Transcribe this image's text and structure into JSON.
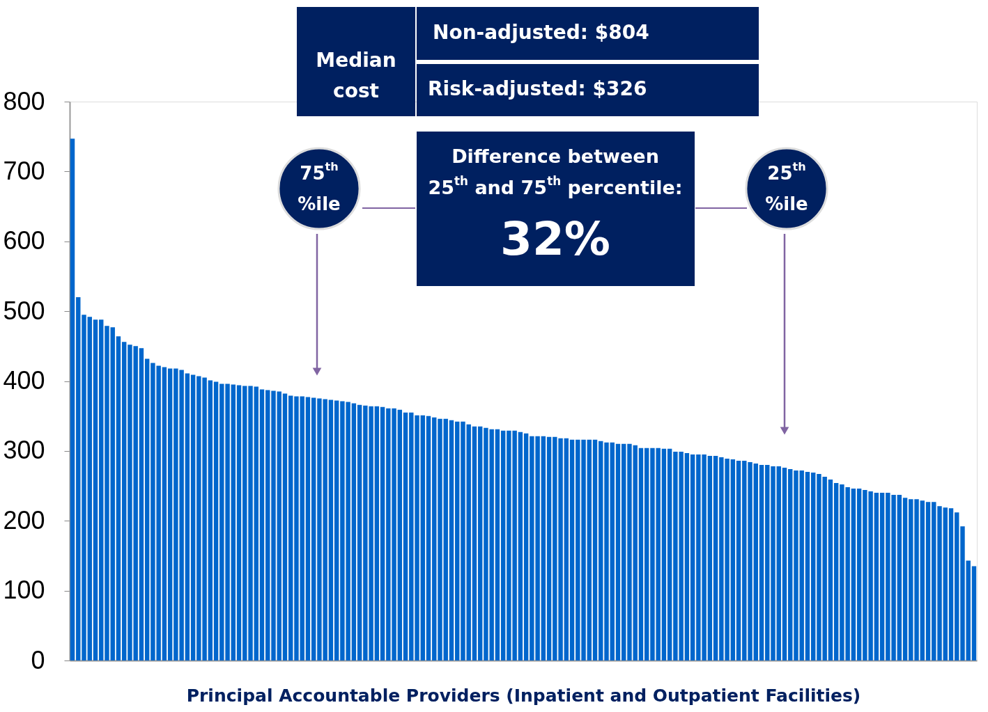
{
  "chart_data": {
    "type": "bar",
    "xlabel": "Principal Accountable Providers (Inpatient and Outpatient Facilities)",
    "categories": [
      null,
      null,
      null,
      null,
      null,
      null,
      null,
      null,
      null,
      null,
      null,
      null,
      null,
      null,
      null,
      null,
      null,
      null,
      null,
      null,
      null,
      null,
      null,
      null,
      null,
      null,
      null,
      null,
      null,
      null,
      null,
      null,
      null,
      null,
      null,
      null,
      null,
      null,
      null,
      null,
      null,
      null,
      null,
      null,
      null,
      null,
      null,
      null,
      null,
      null,
      null,
      null,
      null,
      null,
      null,
      null,
      null,
      null,
      null,
      null,
      null,
      null,
      null,
      null,
      null,
      null,
      null,
      null,
      null,
      null,
      null,
      null,
      null,
      null,
      null,
      null,
      null,
      null,
      null,
      null,
      null,
      null,
      null,
      null,
      null,
      null,
      null,
      null,
      null,
      null,
      null,
      null,
      null,
      null,
      null,
      null,
      null,
      null,
      null,
      null,
      null,
      null,
      null,
      null,
      null,
      null,
      null,
      null,
      null,
      null,
      null,
      null,
      null,
      null,
      null,
      null,
      null,
      null,
      null,
      null,
      null,
      null,
      null,
      null,
      null,
      null,
      null,
      null,
      null,
      null,
      null,
      null,
      null,
      null,
      null,
      null,
      null,
      null,
      null,
      null,
      null,
      null,
      null,
      null,
      null,
      null,
      null,
      null,
      null,
      null,
      null,
      null,
      null,
      null,
      null,
      null,
      null,
      null
    ],
    "values": [
      747,
      520,
      495,
      492,
      488,
      488,
      479,
      477,
      464,
      456,
      452,
      450,
      447,
      432,
      426,
      422,
      420,
      418,
      418,
      416,
      411,
      409,
      407,
      405,
      401,
      399,
      396,
      396,
      395,
      394,
      393,
      393,
      392,
      388,
      387,
      386,
      385,
      382,
      379,
      378,
      378,
      377,
      376,
      375,
      374,
      373,
      372,
      371,
      370,
      368,
      366,
      365,
      364,
      364,
      363,
      361,
      361,
      359,
      355,
      355,
      351,
      351,
      350,
      348,
      346,
      346,
      344,
      342,
      342,
      338,
      335,
      335,
      333,
      331,
      331,
      329,
      329,
      329,
      327,
      325,
      321,
      321,
      321,
      320,
      320,
      318,
      318,
      316,
      316,
      316,
      316,
      316,
      314,
      312,
      312,
      310,
      310,
      310,
      308,
      304,
      304,
      304,
      304,
      303,
      303,
      299,
      299,
      297,
      295,
      295,
      295,
      293,
      293,
      291,
      289,
      288,
      286,
      286,
      284,
      282,
      280,
      280,
      278,
      278,
      276,
      274,
      272,
      272,
      270,
      269,
      267,
      263,
      259,
      254,
      252,
      248,
      246,
      246,
      244,
      242,
      240,
      240,
      240,
      237,
      237,
      233,
      231,
      231,
      229,
      227,
      227,
      221,
      219,
      218,
      212,
      192,
      143,
      135
    ],
    "color": "#0066cc",
    "ylim": [
      0,
      800
    ],
    "yticks": [
      0,
      100,
      200,
      300,
      400,
      500,
      600,
      700,
      800
    ],
    "grid": false,
    "legend": false,
    "tick_labels": "y",
    "annotations": [
      "Median cost",
      "Non-adjusted: $804",
      "Risk-adjusted: $326",
      "Difference between 25$^{th}$ and 75$^{th}$ percentile:",
      "32%",
      "75$^{th}$ %ile",
      "25$^{th}$ %ile"
    ]
  }
}
